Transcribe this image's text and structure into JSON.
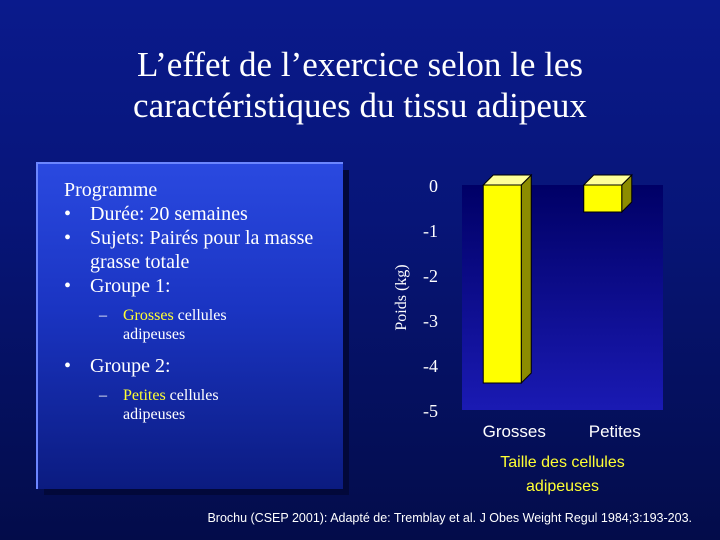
{
  "title": {
    "line1": "L’effet de l’exercice selon le les",
    "line2": "caractéristiques du tissu adipeux"
  },
  "panel": {
    "heading": "Programme",
    "bullets": [
      {
        "text": "Durée: 20 semaines"
      },
      {
        "text": "Sujets: Pairés pour la masse grasse totale"
      },
      {
        "text": "Groupe 1:"
      }
    ],
    "sub1": {
      "highlight": "Grosses",
      "rest": "cellules adipeuses"
    },
    "bullet4": "Groupe 2:",
    "sub2": {
      "highlight": "Petites",
      "rest": "cellules adipeuses"
    },
    "bullet_glyph": "•",
    "dash_glyph": "–"
  },
  "colors": {
    "highlight": "#ffff33",
    "bar": "#ffff00",
    "plot_bg_top": "#000066",
    "plot_bg_bottom": "#1a1ab3"
  },
  "chart_data": {
    "type": "bar",
    "categories": [
      "Grosses",
      "Petites"
    ],
    "values": [
      -4.4,
      -0.6
    ],
    "ylabel": "Poids (kg)",
    "xlabel": "Taille des cellules adipeuses",
    "ylim": [
      -5,
      0
    ],
    "yticks": [
      "0",
      "-1",
      "-2",
      "-3",
      "-4",
      "-5"
    ],
    "ytick_values": [
      0,
      -1,
      -2,
      -3,
      -4,
      -5
    ],
    "bar_style": "3d",
    "grid": false
  },
  "footer": "Brochu (CSEP 2001): Adapté de: Tremblay et al. J Obes Weight Regul 1984;3:193-203."
}
